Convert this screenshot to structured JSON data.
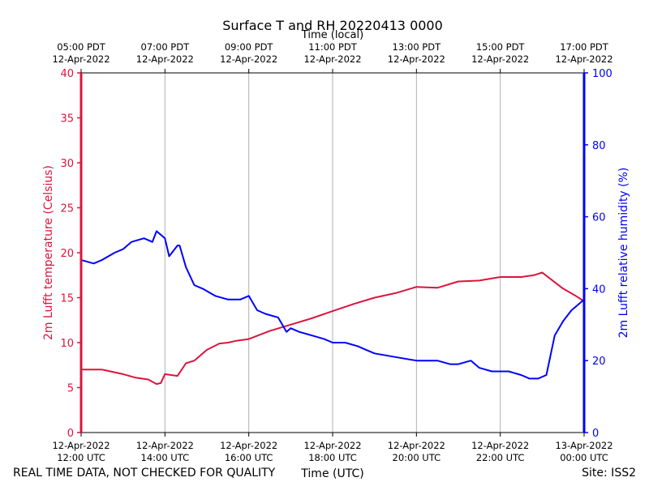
{
  "chart_data": {
    "type": "line",
    "title": "Surface T and RH 20220413 0000",
    "top_axis_label": "Time (local)",
    "xlabel": "Time (UTC)",
    "ylabel_left": "2m Lufft temperature (Celsius)",
    "ylabel_right": "2m Lufft relative humidity (%)",
    "ylim_left": [
      0,
      40
    ],
    "ylim_right": [
      0,
      100
    ],
    "xlim_hours_utc": [
      12,
      24
    ],
    "left_ticks": [
      "0",
      "5",
      "10",
      "15",
      "20",
      "25",
      "30",
      "35",
      "40"
    ],
    "right_ticks": [
      "0",
      "20",
      "40",
      "60",
      "80",
      "100"
    ],
    "grid": "vertical lines at each x tick",
    "bottom_ticks": [
      {
        "hour": 12,
        "date": "12-Apr-2022",
        "time": "12:00 UTC"
      },
      {
        "hour": 14,
        "date": "12-Apr-2022",
        "time": "14:00 UTC"
      },
      {
        "hour": 16,
        "date": "12-Apr-2022",
        "time": "16:00 UTC"
      },
      {
        "hour": 18,
        "date": "12-Apr-2022",
        "time": "18:00 UTC"
      },
      {
        "hour": 20,
        "date": "12-Apr-2022",
        "time": "20:00 UTC"
      },
      {
        "hour": 22,
        "date": "12-Apr-2022",
        "time": "22:00 UTC"
      },
      {
        "hour": 24,
        "date": "13-Apr-2022",
        "time": "00:00 UTC"
      }
    ],
    "top_ticks": [
      {
        "hour": 12,
        "time": "05:00 PDT",
        "date": "12-Apr-2022"
      },
      {
        "hour": 14,
        "time": "07:00 PDT",
        "date": "12-Apr-2022"
      },
      {
        "hour": 16,
        "time": "09:00 PDT",
        "date": "12-Apr-2022"
      },
      {
        "hour": 18,
        "time": "11:00 PDT",
        "date": "12-Apr-2022"
      },
      {
        "hour": 20,
        "time": "13:00 PDT",
        "date": "12-Apr-2022"
      },
      {
        "hour": 22,
        "time": "15:00 PDT",
        "date": "12-Apr-2022"
      },
      {
        "hour": 24,
        "time": "17:00 PDT",
        "date": "12-Apr-2022"
      }
    ],
    "series": [
      {
        "axis": "left",
        "color": "#dc143c",
        "x_hours_utc": [
          12.0,
          12.5,
          13.0,
          13.3,
          13.6,
          13.8,
          13.9,
          14.0,
          14.3,
          14.5,
          14.7,
          15.0,
          15.3,
          15.5,
          15.7,
          16.0,
          16.5,
          17.0,
          17.5,
          18.0,
          18.5,
          19.0,
          19.5,
          20.0,
          20.5,
          21.0,
          21.5,
          22.0,
          22.5,
          22.8,
          23.0,
          23.5,
          23.8,
          24.0
        ],
        "values": [
          7.0,
          7.0,
          6.5,
          6.1,
          5.9,
          5.4,
          5.5,
          6.5,
          6.3,
          7.7,
          8.0,
          9.2,
          9.9,
          10.0,
          10.2,
          10.4,
          11.3,
          12.0,
          12.7,
          13.5,
          14.3,
          15.0,
          15.5,
          16.2,
          16.1,
          16.8,
          16.9,
          17.3,
          17.3,
          17.5,
          17.8,
          16.0,
          15.2,
          14.6
        ]
      },
      {
        "axis": "right",
        "color": "#0000ff",
        "x_hours_utc": [
          12.0,
          12.3,
          12.5,
          12.8,
          13.0,
          13.2,
          13.5,
          13.7,
          13.8,
          13.9,
          14.0,
          14.1,
          14.3,
          14.35,
          14.5,
          14.7,
          14.9,
          15.2,
          15.5,
          15.8,
          16.0,
          16.2,
          16.4,
          16.7,
          16.9,
          17.0,
          17.2,
          17.5,
          17.8,
          18.0,
          18.3,
          18.6,
          18.8,
          19.0,
          19.5,
          20.0,
          20.5,
          20.8,
          21.0,
          21.3,
          21.5,
          21.8,
          22.0,
          22.2,
          22.5,
          22.7,
          22.8,
          22.9,
          23.1,
          23.3,
          23.5,
          23.7,
          23.8,
          24.0
        ],
        "values": [
          48,
          47,
          48,
          50,
          51,
          53,
          54,
          53,
          56,
          55,
          54,
          49,
          52,
          52,
          46,
          41,
          40,
          38,
          37,
          37,
          38,
          34,
          33,
          32,
          28,
          29,
          28,
          27,
          26,
          25,
          25,
          24,
          23,
          22,
          21,
          20,
          20,
          19,
          19,
          20,
          18,
          17,
          17,
          17,
          16,
          15,
          15,
          15,
          16,
          27,
          31,
          34,
          35,
          37
        ]
      }
    ]
  },
  "footer": {
    "left_note": "REAL TIME DATA, NOT CHECKED FOR QUALITY",
    "site": "Site: ISS2"
  }
}
